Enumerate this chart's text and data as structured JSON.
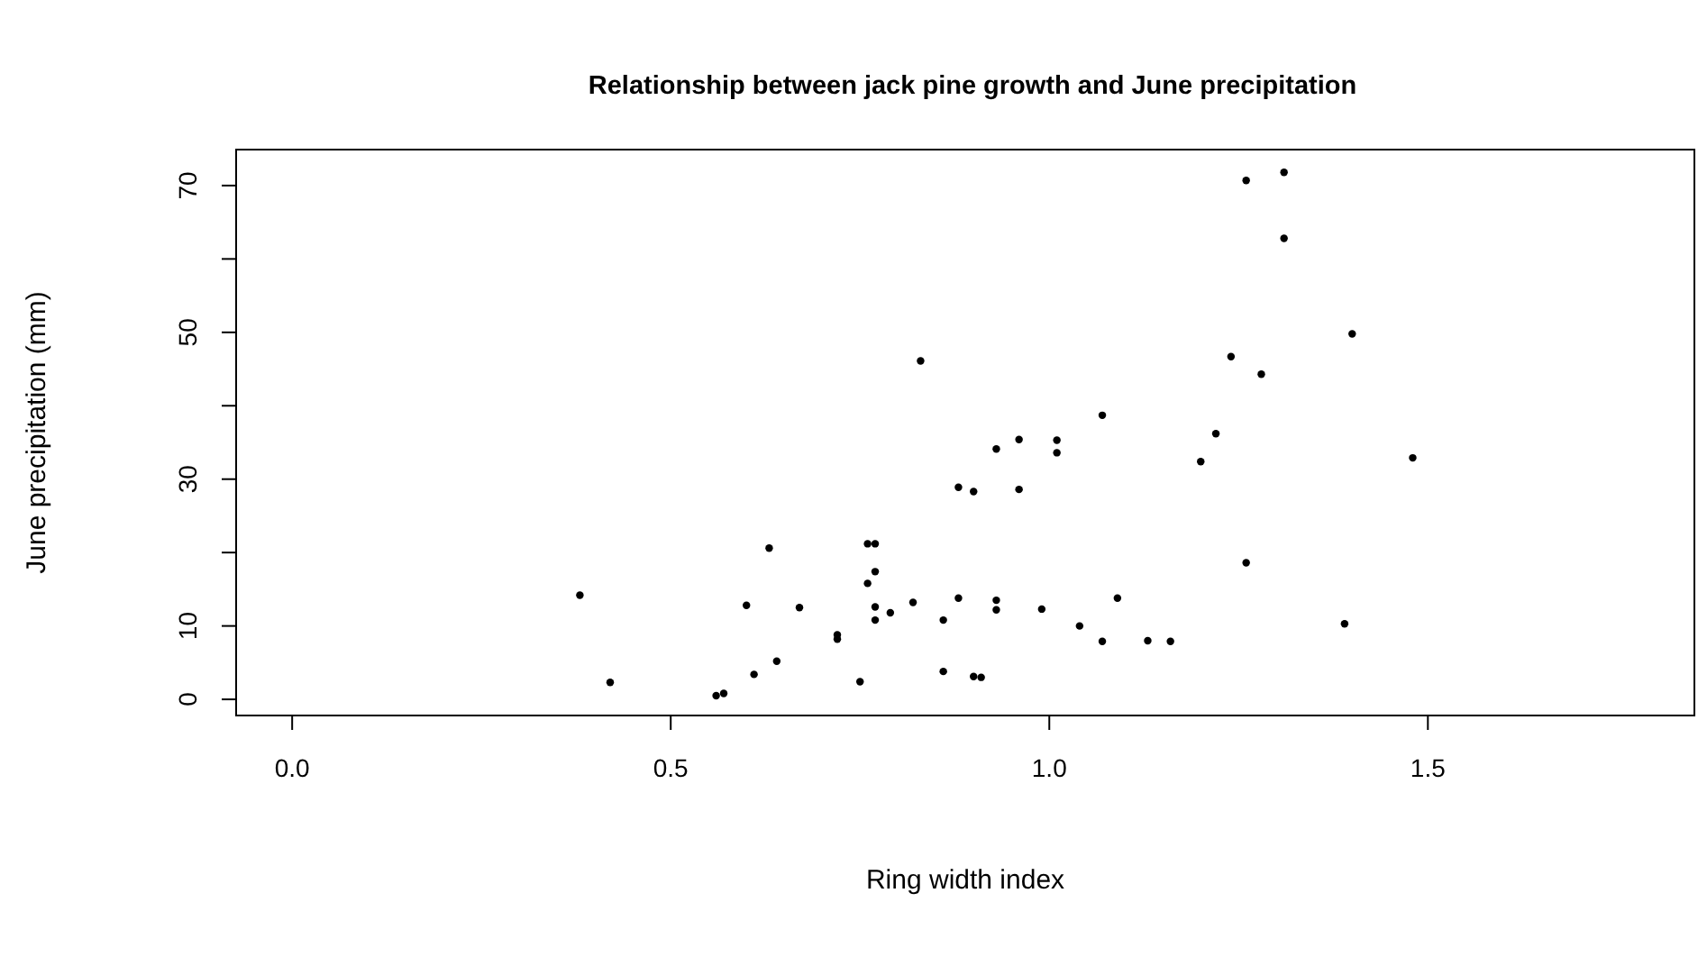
{
  "chart_data": {
    "type": "scatter",
    "title": "Relationship between jack pine growth and June precipitation",
    "xlabel": "Ring width index",
    "ylabel": "June precipitation (mm)",
    "xlim": [
      -0.074,
      1.852
    ],
    "xticks": [
      {
        "value": 0,
        "label": "0.0"
      },
      {
        "value": 0.5,
        "label": "0.5"
      },
      {
        "value": 1,
        "label": "1.0"
      },
      {
        "value": 1.5,
        "label": "1.5"
      }
    ],
    "ylim": [
      -2.2,
      74.9
    ],
    "yticks": [
      0,
      10,
      {
        "value": 20,
        "label": null
      },
      30,
      {
        "value": 40,
        "label": null
      },
      50,
      {
        "value": 60,
        "label": null
      },
      70
    ],
    "marker": "circle",
    "series": [
      {
        "color": "#000000",
        "x": [
          0.38,
          0.42,
          0.56,
          0.57,
          0.6,
          0.61,
          0.63,
          0.64,
          0.67,
          0.72,
          0.72,
          0.75,
          0.76,
          0.77,
          0.76,
          0.77,
          0.77,
          0.77,
          0.79,
          0.82,
          0.86,
          0.86,
          0.88,
          0.9,
          0.91,
          0.93,
          0.93,
          0.99,
          1.04,
          1.07,
          1.09,
          1.13,
          1.16,
          1.01,
          1.01,
          1.07,
          1.2,
          1.22,
          1.24,
          1.28,
          1.26,
          1.31,
          1.31,
          1.26,
          1.39,
          1.4,
          1.48,
          0.83,
          0.93,
          0.96,
          0.88,
          0.9,
          0.96
        ],
        "values": [
          14.2,
          2.3,
          0.5,
          0.8,
          12.8,
          3.4,
          20.6,
          5.2,
          12.5,
          8.2,
          8.8,
          2.4,
          15.8,
          17.4,
          21.2,
          21.2,
          10.8,
          12.6,
          11.8,
          13.2,
          3.8,
          10.8,
          13.8,
          3.1,
          3.0,
          12.2,
          13.5,
          12.3,
          10.0,
          7.9,
          13.8,
          8.0,
          7.9,
          35.3,
          33.6,
          38.7,
          32.4,
          36.2,
          46.7,
          44.3,
          70.7,
          71.8,
          62.8,
          18.6,
          10.3,
          49.8,
          32.9,
          46.1,
          34.1,
          35.4,
          28.9,
          28.3,
          28.6
        ]
      }
    ]
  }
}
